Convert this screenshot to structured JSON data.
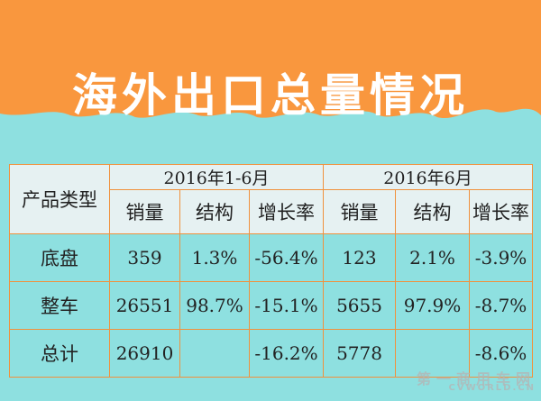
{
  "title": "海外出口总量情况",
  "colors": {
    "orange": "#f9973e",
    "cyan": "#8ee0e0",
    "border": "#f0913d",
    "header_bg": "#e6f1f2"
  },
  "table": {
    "row_header_label": "产品类型",
    "period_headers": [
      "2016年1-6月",
      "2016年6月"
    ],
    "sub_headers": [
      "销量",
      "结构",
      "增长率",
      "销量",
      "结构",
      "增长率"
    ],
    "rows": [
      {
        "label": "底盘",
        "cells": [
          "359",
          "1.3%",
          "-56.4%",
          "123",
          "2.1%",
          "-3.9%"
        ]
      },
      {
        "label": "整车",
        "cells": [
          "26551",
          "98.7%",
          "-15.1%",
          "5655",
          "97.9%",
          "-8.7%"
        ]
      },
      {
        "label": "总计",
        "cells": [
          "26910",
          "",
          "-16.2%",
          "5778",
          "",
          "-8.6%"
        ]
      }
    ]
  },
  "watermark": {
    "cn": "第一商用车网",
    "en": "CVWORLD.CN"
  }
}
